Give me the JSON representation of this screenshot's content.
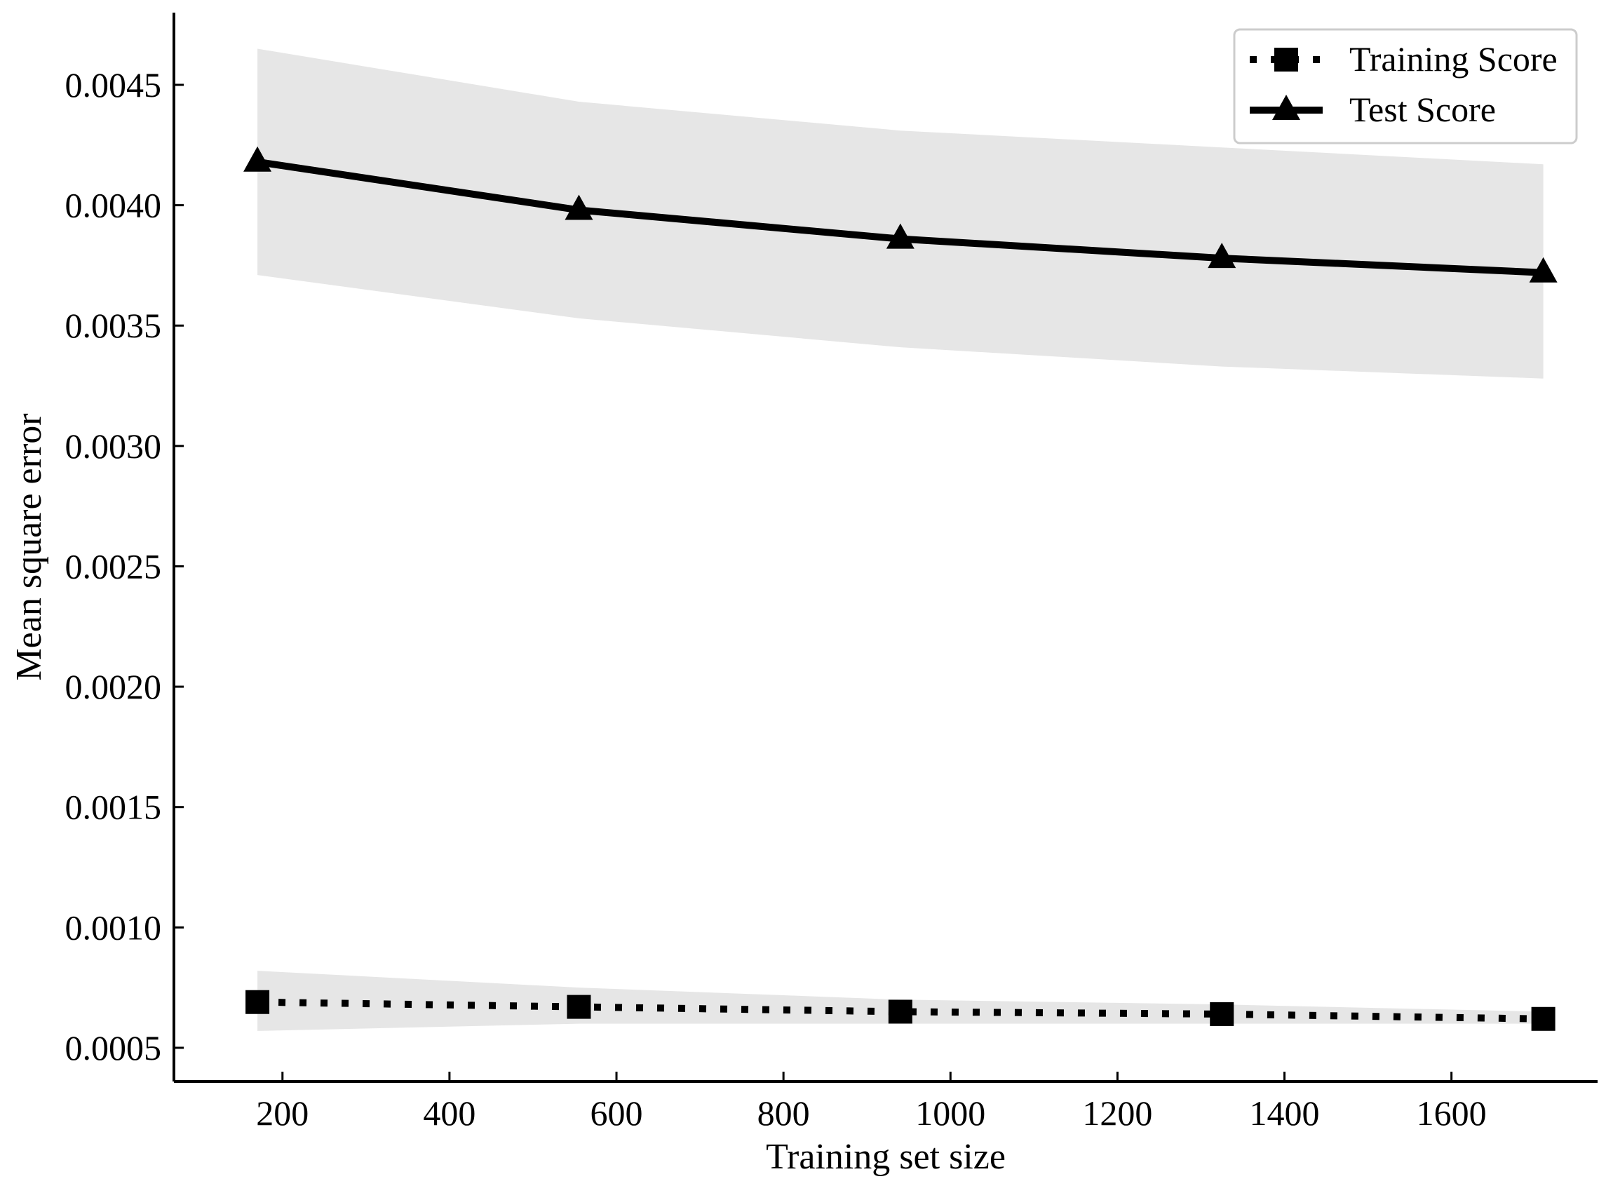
{
  "chart_data": {
    "type": "line",
    "xlabel": "Training set size",
    "ylabel": "Mean square error",
    "xlim": [
      70,
      1775
    ],
    "ylim": [
      0.00036,
      0.0048
    ],
    "xticks": [
      200,
      400,
      600,
      800,
      1000,
      1200,
      1400,
      1600
    ],
    "xtick_labels": [
      "200",
      "400",
      "600",
      "800",
      "1000",
      "1200",
      "1400",
      "1600"
    ],
    "yticks": [
      0.0005,
      0.001,
      0.0015,
      0.002,
      0.0025,
      0.003,
      0.0035,
      0.004,
      0.0045
    ],
    "ytick_labels": [
      "0.0005",
      "0.0010",
      "0.0015",
      "0.0020",
      "0.0025",
      "0.0030",
      "0.0035",
      "0.0040",
      "0.0045"
    ],
    "x": [
      170,
      555,
      940,
      1325,
      1710
    ],
    "series": [
      {
        "name": "Training Score",
        "values": [
          0.00069,
          0.00067,
          0.00065,
          0.00064,
          0.00062
        ],
        "band_upper": [
          0.00082,
          0.00075,
          0.0007,
          0.00068,
          0.00065
        ],
        "band_lower": [
          0.00057,
          0.0006,
          0.0006,
          0.0006,
          0.0006
        ],
        "line_style": "dotted",
        "marker": "square",
        "color": "#000000",
        "band_color": "#e6e6e6"
      },
      {
        "name": "Test Score",
        "values": [
          0.00418,
          0.00398,
          0.00386,
          0.00378,
          0.00372
        ],
        "band_upper": [
          0.00465,
          0.00443,
          0.00431,
          0.00424,
          0.00417
        ],
        "band_lower": [
          0.00371,
          0.00353,
          0.00341,
          0.00333,
          0.00328
        ],
        "line_style": "solid",
        "marker": "triangle",
        "color": "#000000",
        "band_color": "#e6e6e6"
      }
    ],
    "legend_position": "top-right",
    "grid": false
  }
}
